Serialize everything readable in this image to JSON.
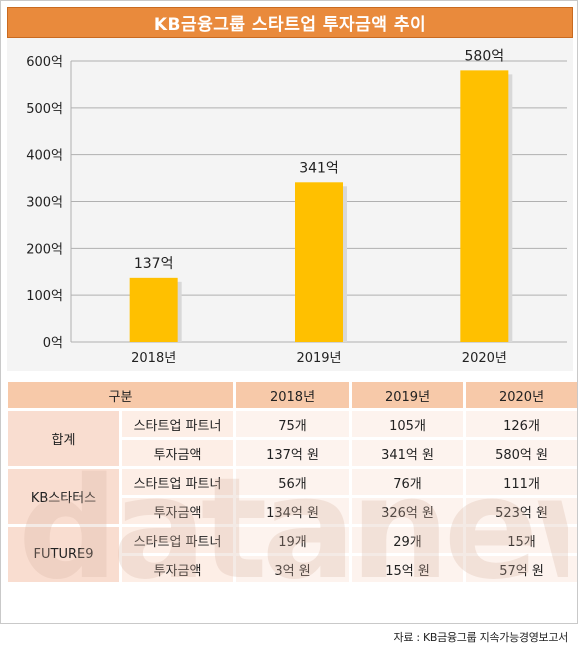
{
  "title": "KB금융그룹 스타트업 투자금액 추이",
  "chart_data": {
    "type": "bar",
    "categories": [
      "2018년",
      "2019년",
      "2020년"
    ],
    "values": [
      137,
      341,
      580
    ],
    "data_labels": [
      "137억",
      "341억",
      "580억"
    ],
    "y_ticks": [
      "0억",
      "100억",
      "200억",
      "300억",
      "400억",
      "500억",
      "600억"
    ],
    "ylim": [
      0,
      600
    ],
    "grid": true,
    "bar_color": "#ffc000"
  },
  "table": {
    "header": {
      "group": "구분",
      "years": [
        "2018년",
        "2019년",
        "2020년"
      ]
    },
    "groups": [
      {
        "name": "합계",
        "rows": [
          {
            "label": "스타트업 파트너",
            "values": [
              "75개",
              "105개",
              "126개"
            ]
          },
          {
            "label": "투자금액",
            "values": [
              "137억 원",
              "341억 원",
              "580억 원"
            ]
          }
        ]
      },
      {
        "name": "KB스타터스",
        "rows": [
          {
            "label": "스타트업 파트너",
            "values": [
              "56개",
              "76개",
              "111개"
            ]
          },
          {
            "label": "투자금액",
            "values": [
              "134억 원",
              "326억 원",
              "523억 원"
            ]
          }
        ]
      },
      {
        "name": "FUTURE9",
        "rows": [
          {
            "label": "스타트업 파트너",
            "values": [
              "19개",
              "29개",
              "15개"
            ]
          },
          {
            "label": "투자금액",
            "values": [
              "3억 원",
              "15억 원",
              "57억 원"
            ]
          }
        ]
      }
    ]
  },
  "watermark": "datanews",
  "source": "자료 : KB금융그룹 지속가능경영보고서",
  "colors": {
    "title_bg": "#e98a3c",
    "table_header": "#f7c9a9",
    "table_group": "#f9ddd0"
  }
}
